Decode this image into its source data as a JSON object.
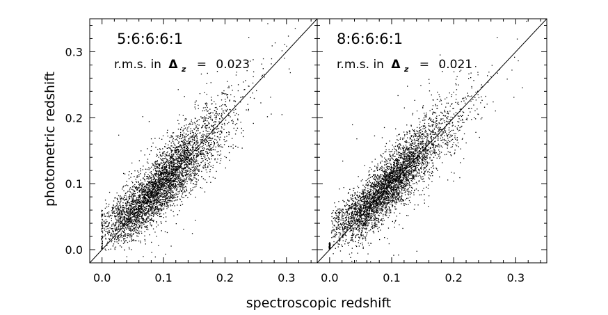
{
  "figure": {
    "xlabel": "spectroscopic redshift",
    "ylabel": "photometric redshift"
  },
  "chart_data": [
    {
      "type": "scatter",
      "title": "5:6:6:6:1",
      "annotation": {
        "text": "r.m.s. in",
        "symbol": "Δ",
        "subscript": "z",
        "equals": "=",
        "value": "0.023"
      },
      "xlim": [
        -0.02,
        0.35
      ],
      "ylim": [
        -0.02,
        0.35
      ],
      "x_ticks": [
        0.0,
        0.1,
        0.2,
        0.3
      ],
      "x_tick_labels": [
        "0.0",
        "0.1",
        "0.2",
        "0.3"
      ],
      "y_ticks": [
        0.0,
        0.1,
        0.2,
        0.3
      ],
      "y_tick_labels": [
        "0.0",
        "0.1",
        "0.2",
        "0.3"
      ],
      "reference_line": {
        "type": "identity",
        "from": [
          -0.02,
          -0.02
        ],
        "to": [
          0.35,
          0.35
        ]
      },
      "scatter_rms": 0.023,
      "point_density": [
        {
          "x": 0.0,
          "y_range": [
            0.0,
            0.06
          ],
          "density": "high"
        },
        {
          "x": 0.05,
          "y_center": 0.06,
          "density": "high"
        },
        {
          "x": 0.09,
          "y_center": 0.09,
          "density": "peak"
        },
        {
          "x": 0.13,
          "y_center": 0.12,
          "density": "high"
        },
        {
          "x": 0.2,
          "y_center": 0.18,
          "density": "medium"
        },
        {
          "x": 0.26,
          "y_center": 0.24,
          "density": "low"
        }
      ],
      "grid": false,
      "legend": "none"
    },
    {
      "type": "scatter",
      "title": "8:6:6:6:1",
      "annotation": {
        "text": "r.m.s. in",
        "symbol": "Δ",
        "subscript": "z",
        "equals": "=",
        "value": "0.021"
      },
      "xlim": [
        -0.02,
        0.35
      ],
      "ylim": [
        -0.02,
        0.35
      ],
      "x_ticks": [
        0.0,
        0.1,
        0.2,
        0.3
      ],
      "x_tick_labels": [
        "0.0",
        "0.1",
        "0.2",
        "0.3"
      ],
      "y_ticks": [
        0.0,
        0.1,
        0.2,
        0.3
      ],
      "y_tick_labels": [],
      "reference_line": {
        "type": "identity",
        "from": [
          -0.02,
          -0.02
        ],
        "to": [
          0.35,
          0.35
        ]
      },
      "scatter_rms": 0.021,
      "point_density": [
        {
          "x": 0.0,
          "y_range": [
            0.0,
            0.01
          ],
          "density": "high"
        },
        {
          "x": 0.05,
          "y_center": 0.055,
          "density": "high"
        },
        {
          "x": 0.08,
          "y_center": 0.085,
          "density": "peak"
        },
        {
          "x": 0.13,
          "y_center": 0.12,
          "density": "high"
        },
        {
          "x": 0.2,
          "y_center": 0.18,
          "density": "medium"
        },
        {
          "x": 0.26,
          "y_center": 0.24,
          "density": "low"
        }
      ],
      "grid": false,
      "legend": "none"
    }
  ]
}
